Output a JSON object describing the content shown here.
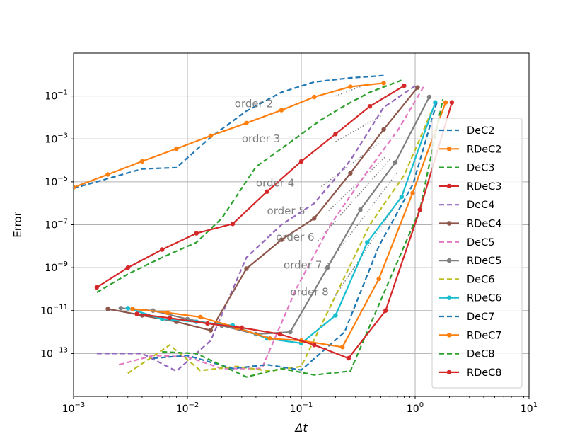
{
  "chart_data": {
    "type": "line",
    "xscale": "log",
    "yscale": "log",
    "xlabel": "Δt",
    "ylabel": "Error",
    "xlim": [
      0.001,
      10
    ],
    "ylim": [
      1e-15,
      10
    ],
    "grid": true,
    "legend_position": "right",
    "x_ticks": [
      {
        "value": 0.001,
        "base": "10",
        "exp": "−3"
      },
      {
        "value": 0.01,
        "base": "10",
        "exp": "−2"
      },
      {
        "value": 0.1,
        "base": "10",
        "exp": "−1"
      },
      {
        "value": 1,
        "base": "10",
        "exp": "0"
      },
      {
        "value": 10,
        "base": "10",
        "exp": "1"
      }
    ],
    "y_ticks": [
      {
        "value": 0.1,
        "base": "10",
        "exp": "−1"
      },
      {
        "value": 0.001,
        "base": "10",
        "exp": "−3"
      },
      {
        "value": 1e-05,
        "base": "10",
        "exp": "−5"
      },
      {
        "value": 1e-07,
        "base": "10",
        "exp": "−7"
      },
      {
        "value": 1e-09,
        "base": "10",
        "exp": "−9"
      },
      {
        "value": 1e-11,
        "base": "10",
        "exp": "−11"
      },
      {
        "value": 1e-13,
        "base": "10",
        "exp": "−13"
      }
    ],
    "order_annotations": [
      {
        "label": "order 2",
        "x": 0.026,
        "y": 0.03,
        "ref_x": [
          0.2,
          0.4
        ],
        "ref_y": [
          0.1,
          0.4
        ]
      },
      {
        "label": "order 3",
        "x": 0.03,
        "y": 0.0007,
        "ref_x": [
          0.2,
          0.5
        ],
        "ref_y": [
          0.00075,
          0.0117
        ]
      },
      {
        "label": "order 4",
        "x": 0.04,
        "y": 6e-06,
        "ref_x": [
          0.15,
          0.5
        ],
        "ref_y": [
          6e-06,
          0.00074
        ]
      },
      {
        "label": "order 5",
        "x": 0.05,
        "y": 3e-07,
        "ref_x": [
          0.16,
          0.55
        ],
        "ref_y": [
          3e-07,
          0.00015
        ]
      },
      {
        "label": "order 6",
        "x": 0.06,
        "y": 1.8e-08,
        "ref_x": [
          0.14,
          0.6
        ],
        "ref_y": [
          1.8e-08,
          0.00011
        ]
      },
      {
        "label": "order 7",
        "x": 0.07,
        "y": 9e-10,
        "ref_x": [
          0.16,
          0.7
        ],
        "ref_y": [
          9e-10,
          2.8e-05
        ]
      },
      {
        "label": "order 8",
        "x": 0.08,
        "y": 5e-11,
        "ref_x": [
          0.2,
          0.8
        ],
        "ref_y": [
          5e-11,
          3.3e-06
        ]
      }
    ],
    "series": [
      {
        "name": "DeC2",
        "color": "#1f77b4",
        "dashed": true,
        "marker": false,
        "x": [
          0.001,
          0.004,
          0.008,
          0.016,
          0.033,
          0.067,
          0.13,
          0.27,
          0.53
        ],
        "y": [
          5e-06,
          4e-05,
          4.6e-05,
          0.0012,
          0.02,
          0.15,
          0.45,
          0.7,
          0.9
        ]
      },
      {
        "name": "RDeC2",
        "color": "#ff7f0e",
        "dashed": false,
        "marker": true,
        "x": [
          0.001,
          0.002,
          0.004,
          0.008,
          0.016,
          0.033,
          0.067,
          0.13,
          0.27,
          0.53
        ],
        "y": [
          5.5e-06,
          2.2e-05,
          9e-05,
          0.00035,
          0.0014,
          0.0055,
          0.022,
          0.09,
          0.27,
          0.4
        ]
      },
      {
        "name": "DeC3",
        "color": "#2ca02c",
        "dashed": true,
        "marker": false,
        "x": [
          0.0016,
          0.003,
          0.006,
          0.012,
          0.02,
          0.04,
          0.08,
          0.15,
          0.25,
          0.4,
          0.8
        ],
        "y": [
          7e-11,
          5e-10,
          3e-09,
          1.5e-08,
          2e-07,
          5e-05,
          0.0007,
          0.008,
          0.04,
          0.15,
          0.6
        ]
      },
      {
        "name": "RDeC3",
        "color": "#d62728",
        "dashed": false,
        "marker": true,
        "x": [
          0.0016,
          0.003,
          0.006,
          0.012,
          0.025,
          0.05,
          0.1,
          0.2,
          0.4,
          0.8
        ],
        "y": [
          1.2e-10,
          1e-09,
          7e-09,
          4e-08,
          1.1e-07,
          3.5e-06,
          9e-05,
          0.0017,
          0.033,
          0.3
        ]
      },
      {
        "name": "DeC4",
        "color": "#9467bd",
        "dashed": true,
        "marker": false,
        "x": [
          0.0016,
          0.004,
          0.008,
          0.016,
          0.033,
          0.067,
          0.13,
          0.27,
          0.53,
          1.05
        ],
        "y": [
          1e-13,
          1e-13,
          1.5e-14,
          4e-13,
          3e-09,
          1e-07,
          1e-06,
          0.0001,
          0.03,
          0.35
        ]
      },
      {
        "name": "RDeC4",
        "color": "#8c564b",
        "dashed": false,
        "marker": true,
        "x": [
          0.002,
          0.004,
          0.008,
          0.016,
          0.033,
          0.067,
          0.13,
          0.27,
          0.53,
          1.05
        ],
        "y": [
          1.2e-11,
          6e-12,
          3e-12,
          1.2e-12,
          9e-10,
          2e-08,
          2e-07,
          2.5e-05,
          0.0028,
          0.25
        ]
      },
      {
        "name": "DeC5",
        "color": "#e377c2",
        "dashed": true,
        "marker": false,
        "x": [
          0.0025,
          0.005,
          0.01,
          0.02,
          0.045,
          0.09,
          0.18,
          0.36,
          0.72,
          1.2
        ],
        "y": [
          3e-14,
          8e-14,
          7e-14,
          2e-14,
          2e-14,
          1e-10,
          1e-07,
          2e-05,
          0.003,
          0.3
        ]
      },
      {
        "name": "RDeC5",
        "color": "#7f7f7f",
        "dashed": false,
        "marker": true,
        "x": [
          0.0026,
          0.005,
          0.01,
          0.02,
          0.04,
          0.08,
          0.17,
          0.33,
          0.67,
          1.33
        ],
        "y": [
          1.3e-11,
          1e-11,
          4e-12,
          2e-12,
          8e-13,
          1e-12,
          1e-09,
          5e-07,
          8e-05,
          0.09
        ]
      },
      {
        "name": "DeC6",
        "color": "#bcbd22",
        "dashed": true,
        "marker": false,
        "x": [
          0.003,
          0.007,
          0.013,
          0.027,
          0.053,
          0.1,
          0.2,
          0.4,
          0.8,
          1.4
        ],
        "y": [
          1.2e-14,
          2.5e-13,
          1.6e-14,
          2.5e-14,
          1.5e-14,
          2.5e-14,
          5e-11,
          1e-07,
          2e-05,
          0.02
        ]
      },
      {
        "name": "RDeC6",
        "color": "#17becf",
        "dashed": false,
        "marker": true,
        "x": [
          0.003,
          0.006,
          0.012,
          0.025,
          0.05,
          0.1,
          0.2,
          0.38,
          0.76,
          1.5
        ],
        "y": [
          1.3e-11,
          4e-12,
          3e-12,
          2e-12,
          5e-13,
          3e-13,
          6e-12,
          1.5e-08,
          2e-06,
          0.05
        ]
      },
      {
        "name": "DeC7",
        "color": "#1f77b4",
        "dashed": true,
        "marker": false,
        "x": [
          0.005,
          0.01,
          0.025,
          0.05,
          0.1,
          0.24,
          0.48,
          0.96,
          1.55
        ],
        "y": [
          6e-14,
          8e-14,
          2e-14,
          3e-14,
          1.7e-14,
          1e-12,
          1e-08,
          8e-06,
          0.05
        ]
      },
      {
        "name": "RDeC7",
        "color": "#ff7f0e",
        "dashed": false,
        "marker": true,
        "x": [
          0.0033,
          0.0067,
          0.013,
          0.027,
          0.053,
          0.1,
          0.23,
          0.48,
          0.95,
          1.85
        ],
        "y": [
          1.2e-11,
          8e-12,
          5e-12,
          1.6e-12,
          5e-13,
          4e-13,
          2e-13,
          3e-10,
          3e-06,
          0.05
        ]
      },
      {
        "name": "DeC8",
        "color": "#2ca02c",
        "dashed": true,
        "marker": false,
        "x": [
          0.006,
          0.012,
          0.033,
          0.067,
          0.13,
          0.27,
          0.55,
          1.1,
          1.75
        ],
        "y": [
          1.2e-13,
          1e-13,
          8e-15,
          2e-14,
          1e-14,
          1.5e-14,
          1e-10,
          5e-07,
          0.07
        ]
      },
      {
        "name": "RDeC8",
        "color": "#d62728",
        "dashed": false,
        "marker": true,
        "x": [
          0.0036,
          0.007,
          0.015,
          0.03,
          0.065,
          0.13,
          0.26,
          0.55,
          1.1,
          2.1
        ],
        "y": [
          7e-12,
          4.5e-12,
          2.5e-12,
          1.6e-12,
          8e-13,
          2.5e-13,
          6e-14,
          1e-11,
          5e-07,
          0.05
        ]
      }
    ]
  }
}
